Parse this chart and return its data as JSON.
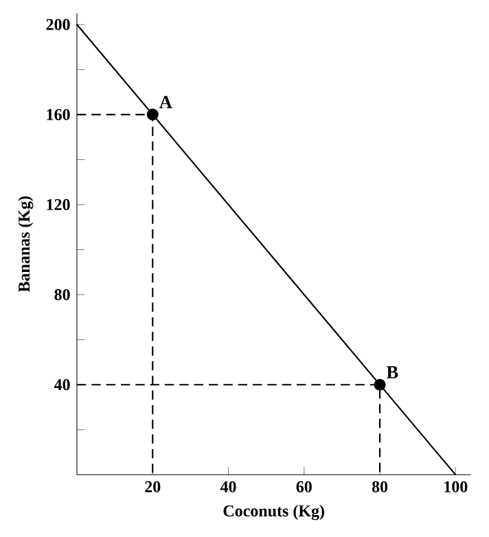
{
  "chart_data": {
    "type": "line",
    "xlabel": "Coconuts (Kg)",
    "ylabel": "Bananas (Kg)",
    "xlim": [
      0,
      104
    ],
    "ylim": [
      0,
      205
    ],
    "xticks": [
      20,
      40,
      60,
      80,
      100
    ],
    "yticks": [
      {
        "value": 20,
        "label": null
      },
      40,
      {
        "value": 60,
        "label": null
      },
      80,
      {
        "value": 100,
        "label": null
      },
      120,
      {
        "value": 140,
        "label": null
      },
      160,
      {
        "value": 180,
        "label": null
      },
      200
    ],
    "series": [
      {
        "color": "#000000",
        "line_style": "solid",
        "x": [
          0,
          100
        ],
        "values": [
          200,
          0
        ]
      },
      {
        "color": "#000000",
        "line_style": "dashed",
        "x": [
          0,
          20,
          20
        ],
        "values": [
          160,
          160,
          0
        ]
      },
      {
        "color": "#000000",
        "line_style": "dashed",
        "x": [
          0,
          80,
          80
        ],
        "values": [
          40,
          40,
          0
        ]
      },
      {
        "type": "scatter",
        "color": "#000000",
        "marker": "circle",
        "x": [
          20,
          80
        ],
        "values": [
          160,
          40
        ]
      }
    ],
    "annotations": [
      {
        "text": "A",
        "x": 20,
        "y": 160
      },
      {
        "text": "B",
        "x": 80,
        "y": 40
      }
    ]
  }
}
